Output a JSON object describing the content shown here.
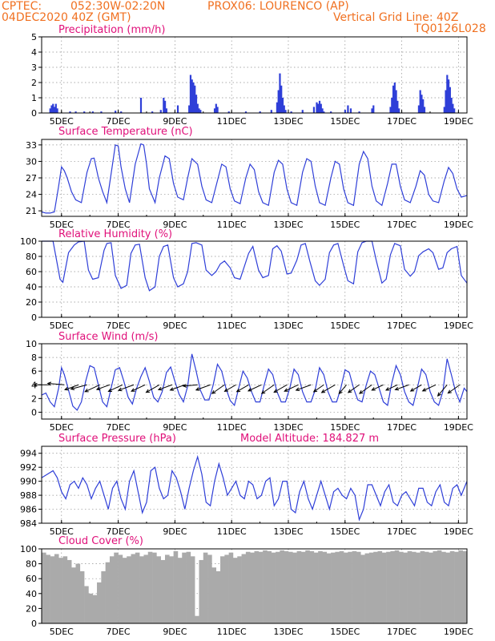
{
  "header": {
    "line1_left": "CPTEC:",
    "line1_coords": "052:30W-02:20N",
    "line1_station": "PROX06: LOURENCO (AP)",
    "line2_date": "04DEC2020 40Z (GMT)",
    "line2_grid": "Vertical Grid Line: 40Z",
    "line3_code": "TQ0126L028"
  },
  "colors": {
    "header": "#f07020",
    "panel_title": "#e0107a",
    "series": "#2f3fd8",
    "cloud": "#aaaaaa",
    "arrow": "#000000"
  },
  "x_axis": {
    "ticks": [
      "5DEC",
      "7DEC",
      "9DEC",
      "11DEC",
      "13DEC",
      "15DEC",
      "17DEC",
      "19DEC"
    ],
    "tick_days": [
      5,
      7,
      9,
      11,
      13,
      15,
      17,
      19
    ],
    "range_days": [
      4.3,
      19.3
    ]
  },
  "chart_data": [
    {
      "type": "bar",
      "title": "Precipitation (mm/h)",
      "ylim": [
        0,
        5
      ],
      "yticks": [
        0,
        1,
        2,
        3,
        4,
        5
      ],
      "grid": true,
      "x_day": [
        4.6,
        4.65,
        4.7,
        4.75,
        4.8,
        4.85,
        5.3,
        5.5,
        5.8,
        6.1,
        6.4,
        6.9,
        7.1,
        7.8,
        8.2,
        8.5,
        8.6,
        8.65,
        8.7,
        9.1,
        9.5,
        9.55,
        9.6,
        9.65,
        9.7,
        9.75,
        9.8,
        9.85,
        9.9,
        10.4,
        10.45,
        10.5,
        10.9,
        11.5,
        12.0,
        12.4,
        12.6,
        12.65,
        12.7,
        12.75,
        12.8,
        12.85,
        12.9,
        13.1,
        13.5,
        13.9,
        14.0,
        14.05,
        14.1,
        14.15,
        14.2,
        14.25,
        14.5,
        15.0,
        15.1,
        15.2,
        15.5,
        15.95,
        16.0,
        16.6,
        16.65,
        16.7,
        16.75,
        16.8,
        16.85,
        16.9,
        17.6,
        17.65,
        17.7,
        17.75,
        17.8,
        18.5,
        18.55,
        18.6,
        18.65,
        18.7,
        18.75,
        18.8,
        18.85
      ],
      "values": [
        0.3,
        0.5,
        0.6,
        0.4,
        0.6,
        0.3,
        0.1,
        0.1,
        0.1,
        0.1,
        0.1,
        0.15,
        0.1,
        1.0,
        0.1,
        0.2,
        1.0,
        0.8,
        0.3,
        0.5,
        0.5,
        2.5,
        2.2,
        2.0,
        1.8,
        1.2,
        0.6,
        0.3,
        0.2,
        0.3,
        0.6,
        0.4,
        0.1,
        0.1,
        0.1,
        0.2,
        0.7,
        1.5,
        2.6,
        1.8,
        1.0,
        0.5,
        0.2,
        0.1,
        0.2,
        0.4,
        0.7,
        0.6,
        0.8,
        0.6,
        0.3,
        0.1,
        0.1,
        0.2,
        0.5,
        0.3,
        0.1,
        0.3,
        0.5,
        0.4,
        1.0,
        1.8,
        2.0,
        1.5,
        0.8,
        0.3,
        0.5,
        1.5,
        1.2,
        0.9,
        0.4,
        0.4,
        1.5,
        2.5,
        2.2,
        1.7,
        1.0,
        0.6,
        0.3
      ]
    },
    {
      "type": "line",
      "title": "Surface Temperature (nC)",
      "ylim": [
        20,
        34
      ],
      "yticks": [
        21,
        24,
        27,
        30,
        33
      ],
      "grid": true,
      "x_day": [
        4.3,
        4.45,
        4.6,
        4.75,
        4.9,
        5.0,
        5.1,
        5.2,
        5.35,
        5.5,
        5.7,
        5.9,
        6.05,
        6.15,
        6.3,
        6.45,
        6.6,
        6.8,
        6.9,
        7.0,
        7.1,
        7.25,
        7.4,
        7.6,
        7.8,
        7.9,
        8.0,
        8.1,
        8.3,
        8.45,
        8.65,
        8.8,
        8.95,
        9.1,
        9.3,
        9.45,
        9.6,
        9.8,
        9.95,
        10.1,
        10.3,
        10.5,
        10.65,
        10.8,
        10.95,
        11.1,
        11.3,
        11.5,
        11.65,
        11.8,
        11.95,
        12.1,
        12.3,
        12.5,
        12.65,
        12.8,
        12.95,
        13.1,
        13.3,
        13.5,
        13.65,
        13.8,
        13.95,
        14.1,
        14.3,
        14.5,
        14.65,
        14.8,
        14.95,
        15.1,
        15.3,
        15.5,
        15.65,
        15.8,
        15.95,
        16.1,
        16.3,
        16.5,
        16.65,
        16.8,
        16.95,
        17.1,
        17.3,
        17.5,
        17.65,
        17.8,
        17.95,
        18.1,
        18.3,
        18.5,
        18.65,
        18.8,
        18.95,
        19.1,
        19.3
      ],
      "values": [
        20.8,
        20.6,
        20.6,
        20.8,
        25.5,
        29.0,
        28.3,
        27.0,
        24.5,
        23.0,
        22.5,
        28.0,
        30.5,
        30.6,
        27.0,
        24.5,
        22.5,
        29.5,
        33.0,
        32.8,
        29.0,
        25.0,
        22.5,
        29.5,
        33.2,
        33.0,
        29.5,
        25.0,
        22.5,
        27.0,
        31.0,
        30.5,
        26.0,
        23.5,
        23.0,
        27.0,
        30.5,
        29.5,
        25.5,
        23.0,
        22.5,
        26.5,
        29.5,
        29.0,
        25.0,
        22.8,
        22.3,
        27.0,
        29.5,
        28.5,
        24.5,
        22.5,
        22.0,
        28.0,
        30.2,
        29.5,
        25.0,
        22.5,
        22.0,
        28.0,
        30.5,
        30.0,
        25.5,
        22.5,
        22.0,
        27.0,
        30.0,
        29.5,
        25.0,
        22.5,
        22.0,
        29.5,
        31.8,
        30.5,
        25.5,
        22.8,
        22.0,
        26.0,
        29.5,
        29.5,
        25.5,
        23.0,
        22.5,
        25.5,
        28.3,
        27.5,
        24.0,
        22.8,
        22.5,
        26.5,
        28.9,
        27.8,
        25.0,
        23.5,
        23.8
      ]
    },
    {
      "type": "line",
      "title": "Relative Humidity (%)",
      "ylim": [
        0,
        100
      ],
      "yticks": [
        0,
        20,
        40,
        60,
        80,
        100
      ],
      "grid": true,
      "x_day": [
        4.3,
        4.5,
        4.7,
        4.85,
        4.95,
        5.05,
        5.25,
        5.45,
        5.6,
        5.8,
        5.95,
        6.1,
        6.3,
        6.5,
        6.6,
        6.75,
        6.9,
        7.1,
        7.3,
        7.45,
        7.6,
        7.75,
        7.95,
        8.1,
        8.3,
        8.45,
        8.6,
        8.75,
        8.95,
        9.1,
        9.3,
        9.45,
        9.6,
        9.75,
        9.95,
        10.1,
        10.3,
        10.45,
        10.6,
        10.75,
        10.95,
        11.1,
        11.3,
        11.45,
        11.6,
        11.75,
        11.95,
        12.1,
        12.3,
        12.45,
        12.6,
        12.75,
        12.95,
        13.1,
        13.3,
        13.45,
        13.6,
        13.75,
        13.95,
        14.1,
        14.3,
        14.45,
        14.6,
        14.75,
        14.95,
        15.1,
        15.3,
        15.45,
        15.6,
        15.75,
        15.95,
        16.1,
        16.3,
        16.45,
        16.6,
        16.75,
        16.95,
        17.1,
        17.3,
        17.45,
        17.6,
        17.75,
        17.95,
        18.1,
        18.3,
        18.45,
        18.6,
        18.75,
        18.95,
        19.1,
        19.3
      ],
      "values": [
        100,
        100,
        100,
        70,
        50,
        46,
        85,
        95,
        99,
        100,
        62,
        50,
        52,
        88,
        97,
        98,
        55,
        38,
        42,
        84,
        95,
        96,
        52,
        35,
        40,
        80,
        93,
        95,
        52,
        40,
        44,
        60,
        97,
        98,
        95,
        62,
        55,
        60,
        70,
        74,
        65,
        52,
        50,
        67,
        84,
        93,
        62,
        52,
        55,
        90,
        94,
        87,
        57,
        58,
        75,
        95,
        97,
        75,
        48,
        42,
        50,
        85,
        95,
        97,
        68,
        48,
        44,
        86,
        98,
        100,
        100,
        75,
        45,
        50,
        82,
        97,
        94,
        63,
        54,
        60,
        81,
        86,
        90,
        85,
        63,
        65,
        85,
        90,
        93,
        55,
        45
      ]
    },
    {
      "type": "line",
      "title": "Surface Wind (m/s)",
      "ylim": [
        -1,
        10
      ],
      "yticks": [
        0,
        2,
        4,
        6,
        8,
        10
      ],
      "grid": true,
      "x_day": [
        4.3,
        4.45,
        4.6,
        4.75,
        4.9,
        5.0,
        5.1,
        5.25,
        5.4,
        5.55,
        5.7,
        5.85,
        6.0,
        6.15,
        6.3,
        6.45,
        6.6,
        6.75,
        6.9,
        7.05,
        7.2,
        7.35,
        7.5,
        7.65,
        7.8,
        7.95,
        8.1,
        8.25,
        8.4,
        8.55,
        8.7,
        8.85,
        9.0,
        9.15,
        9.3,
        9.45,
        9.6,
        9.75,
        9.9,
        10.05,
        10.2,
        10.35,
        10.5,
        10.65,
        10.8,
        10.95,
        11.1,
        11.25,
        11.4,
        11.55,
        11.7,
        11.85,
        12.0,
        12.15,
        12.3,
        12.45,
        12.6,
        12.75,
        12.9,
        13.05,
        13.2,
        13.35,
        13.5,
        13.65,
        13.8,
        13.95,
        14.1,
        14.25,
        14.4,
        14.55,
        14.7,
        14.85,
        15.0,
        15.15,
        15.3,
        15.45,
        15.6,
        15.75,
        15.9,
        16.05,
        16.2,
        16.35,
        16.5,
        16.65,
        16.8,
        16.95,
        17.1,
        17.25,
        17.4,
        17.55,
        17.7,
        17.85,
        18.0,
        18.15,
        18.3,
        18.45,
        18.6,
        18.75,
        18.9,
        19.05,
        19.2,
        19.3
      ],
      "values": [
        2.5,
        2.8,
        1.5,
        0.8,
        3.5,
        6.5,
        5.5,
        3.2,
        0.9,
        0.3,
        1.5,
        4.5,
        6.8,
        6.5,
        4.0,
        1.5,
        0.8,
        3.5,
        6.2,
        6.5,
        4.5,
        2.2,
        1.2,
        3.5,
        5.2,
        6.5,
        4.5,
        2.2,
        1.5,
        3.0,
        5.8,
        6.6,
        4.5,
        2.6,
        1.5,
        3.8,
        8.5,
        6.0,
        3.2,
        1.8,
        1.8,
        4.0,
        7.0,
        6.0,
        3.5,
        1.7,
        1.0,
        3.5,
        6.0,
        5.0,
        3.0,
        1.5,
        1.5,
        4.0,
        6.3,
        5.5,
        3.0,
        1.5,
        1.5,
        3.5,
        6.3,
        5.5,
        3.0,
        1.5,
        1.5,
        3.3,
        6.5,
        5.5,
        3.0,
        1.5,
        1.5,
        3.5,
        6.2,
        5.8,
        3.5,
        1.8,
        1.5,
        4.0,
        6.0,
        5.5,
        3.5,
        1.5,
        1.0,
        4.3,
        6.8,
        5.5,
        3.0,
        1.5,
        1.0,
        3.5,
        6.3,
        5.5,
        3.0,
        1.5,
        1.0,
        3.0,
        7.8,
        5.5,
        3.0,
        1.5,
        3.5,
        3.0
      ],
      "arrows_x_day": [
        4.6,
        5.1,
        5.6,
        5.9,
        6.35,
        6.7,
        7.15,
        7.55,
        7.95,
        8.45,
        8.9,
        9.35,
        9.8,
        10.25,
        10.75,
        11.15,
        11.6,
        12.05,
        12.5,
        12.95,
        13.35,
        13.8,
        14.25,
        14.65,
        15.05,
        15.5,
        15.95,
        16.35,
        16.85,
        17.25,
        17.7,
        18.2,
        18.6,
        19.05
      ],
      "arrows_speed": [
        4.5,
        4.6,
        4.0,
        4.6,
        4.5,
        3.8,
        4.3,
        4.5,
        4.2,
        4.2,
        4.0,
        4.3,
        4.0,
        4.2,
        4.2,
        3.6,
        3.8,
        4.0,
        4.2,
        4.1,
        4.2,
        4.4,
        3.4,
        4.3,
        3.2,
        3.7,
        4.2,
        3.5,
        3.5,
        4.0,
        3.5,
        4.0,
        4.0,
        4.0
      ],
      "arrows_dir_deg": [
        180,
        175,
        200,
        195,
        205,
        200,
        205,
        200,
        205,
        210,
        200,
        200,
        185,
        200,
        215,
        210,
        210,
        205,
        215,
        210,
        205,
        200,
        215,
        210,
        230,
        215,
        215,
        205,
        205,
        200,
        210,
        205,
        230,
        215
      ]
    },
    {
      "type": "line",
      "title": "Surface Pressure (hPa)",
      "annotation": "Model Altitude: 184.827 m",
      "ylim": [
        984,
        995
      ],
      "yticks": [
        984,
        986,
        988,
        990,
        992,
        994
      ],
      "grid": true,
      "x_day": [
        4.3,
        4.5,
        4.7,
        4.85,
        5.0,
        5.15,
        5.3,
        5.45,
        5.6,
        5.75,
        5.9,
        6.05,
        6.2,
        6.35,
        6.5,
        6.65,
        6.8,
        6.95,
        7.1,
        7.25,
        7.4,
        7.55,
        7.7,
        7.85,
        8.0,
        8.15,
        8.3,
        8.45,
        8.6,
        8.75,
        8.9,
        9.05,
        9.2,
        9.35,
        9.5,
        9.65,
        9.8,
        9.95,
        10.1,
        10.25,
        10.4,
        10.55,
        10.7,
        10.85,
        11.0,
        11.15,
        11.3,
        11.45,
        11.6,
        11.75,
        11.9,
        12.05,
        12.2,
        12.35,
        12.5,
        12.65,
        12.8,
        12.95,
        13.1,
        13.25,
        13.4,
        13.55,
        13.7,
        13.85,
        14.0,
        14.15,
        14.3,
        14.45,
        14.6,
        14.75,
        14.9,
        15.05,
        15.2,
        15.35,
        15.5,
        15.65,
        15.8,
        15.95,
        16.1,
        16.25,
        16.4,
        16.55,
        16.7,
        16.85,
        17.0,
        17.15,
        17.3,
        17.45,
        17.6,
        17.75,
        17.9,
        18.05,
        18.2,
        18.35,
        18.5,
        18.65,
        18.8,
        18.95,
        19.1,
        19.3
      ],
      "values": [
        990.5,
        991.0,
        991.5,
        990.5,
        988.5,
        987.5,
        989.5,
        990.0,
        989.0,
        990.5,
        989.5,
        987.5,
        989.0,
        990.0,
        988.0,
        986.0,
        989.0,
        990.0,
        987.5,
        986.0,
        990.0,
        991.5,
        988.5,
        985.5,
        987.0,
        991.5,
        992.0,
        989.0,
        987.5,
        988.0,
        991.5,
        990.5,
        988.5,
        986.0,
        989.0,
        991.5,
        993.5,
        991.0,
        987.0,
        986.5,
        990.0,
        992.5,
        990.5,
        988.0,
        989.0,
        990.0,
        988.0,
        987.5,
        990.0,
        989.5,
        987.5,
        988.0,
        990.0,
        990.5,
        986.5,
        987.5,
        990.0,
        990.0,
        986.0,
        985.5,
        988.5,
        990.0,
        987.5,
        986.0,
        988.0,
        990.0,
        988.0,
        986.0,
        988.5,
        989.0,
        988.0,
        987.5,
        989.0,
        988.0,
        984.5,
        986.0,
        989.5,
        989.5,
        988.0,
        986.5,
        988.5,
        989.5,
        987.0,
        986.5,
        988.0,
        988.5,
        987.5,
        986.5,
        989.0,
        989.0,
        987.0,
        986.5,
        988.5,
        989.5,
        987.0,
        986.5,
        989.0,
        989.5,
        988.0,
        990.0
      ]
    },
    {
      "type": "bar",
      "title": "Cloud Cover (%)",
      "ylim": [
        0,
        100
      ],
      "yticks": [
        0,
        20,
        40,
        60,
        80,
        100
      ],
      "grid": true,
      "x_day": [
        4.3,
        4.45,
        4.6,
        4.75,
        4.9,
        5.05,
        5.2,
        5.35,
        5.5,
        5.65,
        5.8,
        5.95,
        6.1,
        6.25,
        6.4,
        6.55,
        6.7,
        6.85,
        7.0,
        7.15,
        7.3,
        7.45,
        7.6,
        7.75,
        7.9,
        8.05,
        8.2,
        8.35,
        8.5,
        8.65,
        8.8,
        8.95,
        9.1,
        9.25,
        9.4,
        9.55,
        9.7,
        9.85,
        10.0,
        10.15,
        10.3,
        10.45,
        10.6,
        10.75,
        10.9,
        11.05,
        11.2,
        11.35,
        11.5,
        11.65,
        11.8,
        11.95,
        12.1,
        12.25,
        12.4,
        12.55,
        12.7,
        12.85,
        13.0,
        13.15,
        13.3,
        13.45,
        13.6,
        13.75,
        13.9,
        14.05,
        14.2,
        14.35,
        14.5,
        14.65,
        14.8,
        14.95,
        15.1,
        15.25,
        15.4,
        15.55,
        15.7,
        15.85,
        16.0,
        16.15,
        16.3,
        16.45,
        16.6,
        16.75,
        16.9,
        17.05,
        17.2,
        17.35,
        17.5,
        17.65,
        17.8,
        17.95,
        18.1,
        18.25,
        18.4,
        18.55,
        18.7,
        18.85,
        19.0,
        19.15,
        19.3
      ],
      "values": [
        95,
        92,
        90,
        93,
        88,
        90,
        85,
        75,
        80,
        70,
        50,
        40,
        38,
        55,
        70,
        82,
        90,
        95,
        92,
        88,
        90,
        93,
        95,
        90,
        92,
        96,
        95,
        90,
        85,
        92,
        90,
        97,
        88,
        95,
        96,
        90,
        10,
        85,
        95,
        92,
        75,
        70,
        90,
        92,
        95,
        88,
        90,
        93,
        96,
        95,
        97,
        96,
        98,
        97,
        95,
        96,
        98,
        97,
        96,
        95,
        97,
        96,
        98,
        97,
        95,
        97,
        96,
        94,
        95,
        96,
        97,
        95,
        96,
        97,
        96,
        92,
        94,
        95,
        96,
        97,
        95,
        96,
        97,
        98,
        96,
        95,
        97,
        96,
        95,
        97,
        96,
        95,
        97,
        98,
        96,
        95,
        97,
        96,
        98,
        97,
        96
      ]
    }
  ]
}
